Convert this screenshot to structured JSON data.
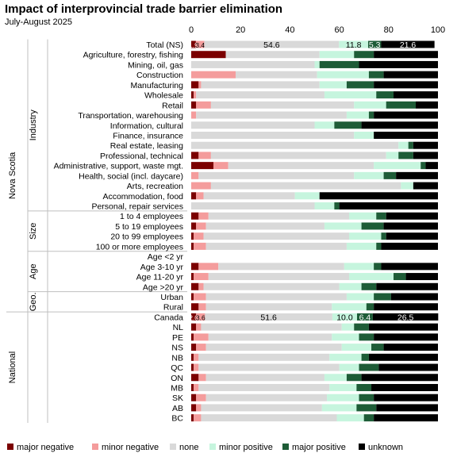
{
  "chart_data": {
    "type": "bar",
    "stacked": true,
    "orientation": "horizontal",
    "title": "Impact of interprovincial trade barrier elimination",
    "subtitle": "July-August 2025",
    "xlim": [
      0,
      100
    ],
    "xticks": [
      0,
      20,
      40,
      60,
      80,
      100
    ],
    "gridlines": false,
    "legend_position": "bottom",
    "series": [
      {
        "name": "major negative",
        "color": "#7B0000"
      },
      {
        "name": "minor negative",
        "color": "#F49C9C"
      },
      {
        "name": "none",
        "color": "#D9D9D9"
      },
      {
        "name": "minor positive",
        "color": "#C6F5DE"
      },
      {
        "name": "major positive",
        "color": "#1E5C37"
      },
      {
        "name": "unknown",
        "color": "#000000"
      }
    ],
    "groups": [
      {
        "label": "Nova Scotia",
        "subgroups": [
          {
            "label": "Industry",
            "rows": [
              {
                "label": "Total (NS)",
                "values": [
                  1.9,
                  3.4,
                  54.6,
                  11.8,
                  5.3,
                  21.6
                ],
                "data_labels": [
                  "1.9",
                  "3.4",
                  "54.6",
                  "11.8",
                  "5.3",
                  "21.6"
                ]
              },
              {
                "label": "Agriculture, forestry, fishing",
                "values": [
                  14,
                  0,
                  38,
                  14,
                  8,
                  26
                ]
              },
              {
                "label": "Mining, oil, gas",
                "values": [
                  0,
                  0,
                  50,
                  2,
                  16,
                  32
                ]
              },
              {
                "label": "Construction",
                "values": [
                  0,
                  18,
                  33,
                  21,
                  6,
                  22
                ]
              },
              {
                "label": "Manufacturing",
                "values": [
                  3,
                  1,
                  48,
                  11,
                  11,
                  26
                ]
              },
              {
                "label": "Wholesale",
                "values": [
                  1,
                  1,
                  52,
                  21,
                  7,
                  18
                ]
              },
              {
                "label": "Retail",
                "values": [
                  2,
                  6,
                  58,
                  13,
                  12,
                  9
                ]
              },
              {
                "label": "Transportation, warehousing",
                "values": [
                  0,
                  2,
                  61,
                  9,
                  2,
                  26
                ]
              },
              {
                "label": "Information, cultural",
                "values": [
                  0,
                  0,
                  50,
                  8,
                  11,
                  31
                ]
              },
              {
                "label": "Finance, insurance",
                "values": [
                  0,
                  0,
                  66,
                  8,
                  0,
                  26
                ]
              },
              {
                "label": "Real estate, leasing",
                "values": [
                  0,
                  0,
                  84,
                  4,
                  2,
                  10
                ]
              },
              {
                "label": "Professional, technical",
                "values": [
                  3,
                  5,
                  71,
                  5,
                  6,
                  10
                ]
              },
              {
                "label": "Administrative, support, waste mgt.",
                "values": [
                  9,
                  6,
                  59,
                  19,
                  2,
                  5
                ]
              },
              {
                "label": "Health, social (incl. daycare)",
                "values": [
                  0,
                  3,
                  63,
                  12,
                  5,
                  17
                ]
              },
              {
                "label": "Arts, recreation",
                "values": [
                  0,
                  8,
                  77,
                  5,
                  0,
                  10
                ]
              },
              {
                "label": "Accommodation, food",
                "values": [
                  2,
                  3,
                  37,
                  10,
                  0,
                  48
                ]
              },
              {
                "label": "Personal, repair services",
                "values": [
                  0,
                  0,
                  50,
                  8,
                  2,
                  40
                ]
              }
            ]
          },
          {
            "label": "Size",
            "rows": [
              {
                "label": "1 to 4 employees",
                "values": [
                  3,
                  4,
                  57,
                  11,
                  4,
                  21
                ]
              },
              {
                "label": "5 to 19 employees",
                "values": [
                  2,
                  4,
                  48,
                  15,
                  9,
                  22
                ]
              },
              {
                "label": "20 to 99 employees",
                "values": [
                  1,
                  4,
                  59,
                  13,
                  2,
                  21
                ]
              },
              {
                "label": "100 or more employees",
                "values": [
                  1,
                  5,
                  57,
                  12,
                  2,
                  23
                ]
              }
            ]
          },
          {
            "label": "Age",
            "rows": [
              {
                "label": "Age <2 yr",
                "values": [
                  0,
                  0,
                  0,
                  0,
                  0,
                  0
                ]
              },
              {
                "label": "Age 3-10 yr",
                "values": [
                  3,
                  8,
                  51,
                  12,
                  3,
                  23
                ]
              },
              {
                "label": "Age 11-20 yr",
                "values": [
                  1,
                  6,
                  57,
                  18,
                  5,
                  13
                ]
              },
              {
                "label": "Age >20 yr",
                "values": [
                  3,
                  2,
                  55,
                  9,
                  6,
                  25
                ]
              }
            ]
          },
          {
            "label": "Geo.",
            "rows": [
              {
                "label": "Urban",
                "values": [
                  1,
                  5,
                  57,
                  11,
                  7,
                  19
                ]
              },
              {
                "label": "Rural",
                "values": [
                  3,
                  3,
                  51,
                  14,
                  3,
                  26
                ]
              }
            ]
          }
        ]
      },
      {
        "label": "National",
        "subgroups": [
          {
            "label": "",
            "rows": [
              {
                "label": "Canada",
                "values": [
                  2.0,
                  3.6,
                  51.6,
                  10.0,
                  6.4,
                  26.5
                ],
                "data_labels": [
                  "2.0",
                  "3.6",
                  "51.6",
                  "10.0",
                  "6.4",
                  "26.5"
                ]
              },
              {
                "label": "NL",
                "values": [
                  2,
                  2,
                  57,
                  5,
                  6,
                  28
                ]
              },
              {
                "label": "PE",
                "values": [
                  1,
                  6,
                  50,
                  11,
                  6,
                  26
                ]
              },
              {
                "label": "NS",
                "values": [
                  2,
                  4,
                  55,
                  12,
                  5,
                  22
                ]
              },
              {
                "label": "NB",
                "values": [
                  1,
                  2,
                  53,
                  13,
                  3,
                  28
                ]
              },
              {
                "label": "QC",
                "values": [
                  1,
                  2,
                  57,
                  8,
                  8,
                  24
                ]
              },
              {
                "label": "ON",
                "values": [
                  3,
                  3,
                  48,
                  9,
                  6,
                  31
                ]
              },
              {
                "label": "MB",
                "values": [
                  1,
                  2,
                  53,
                  11,
                  6,
                  27
                ]
              },
              {
                "label": "SK",
                "values": [
                  2,
                  4,
                  49,
                  13,
                  6,
                  26
                ]
              },
              {
                "label": "AB",
                "values": [
                  2,
                  2,
                  49,
                  14,
                  8,
                  25
                ]
              },
              {
                "label": "BC",
                "values": [
                  1,
                  3,
                  55,
                  11,
                  4,
                  26
                ]
              }
            ]
          }
        ]
      }
    ]
  }
}
